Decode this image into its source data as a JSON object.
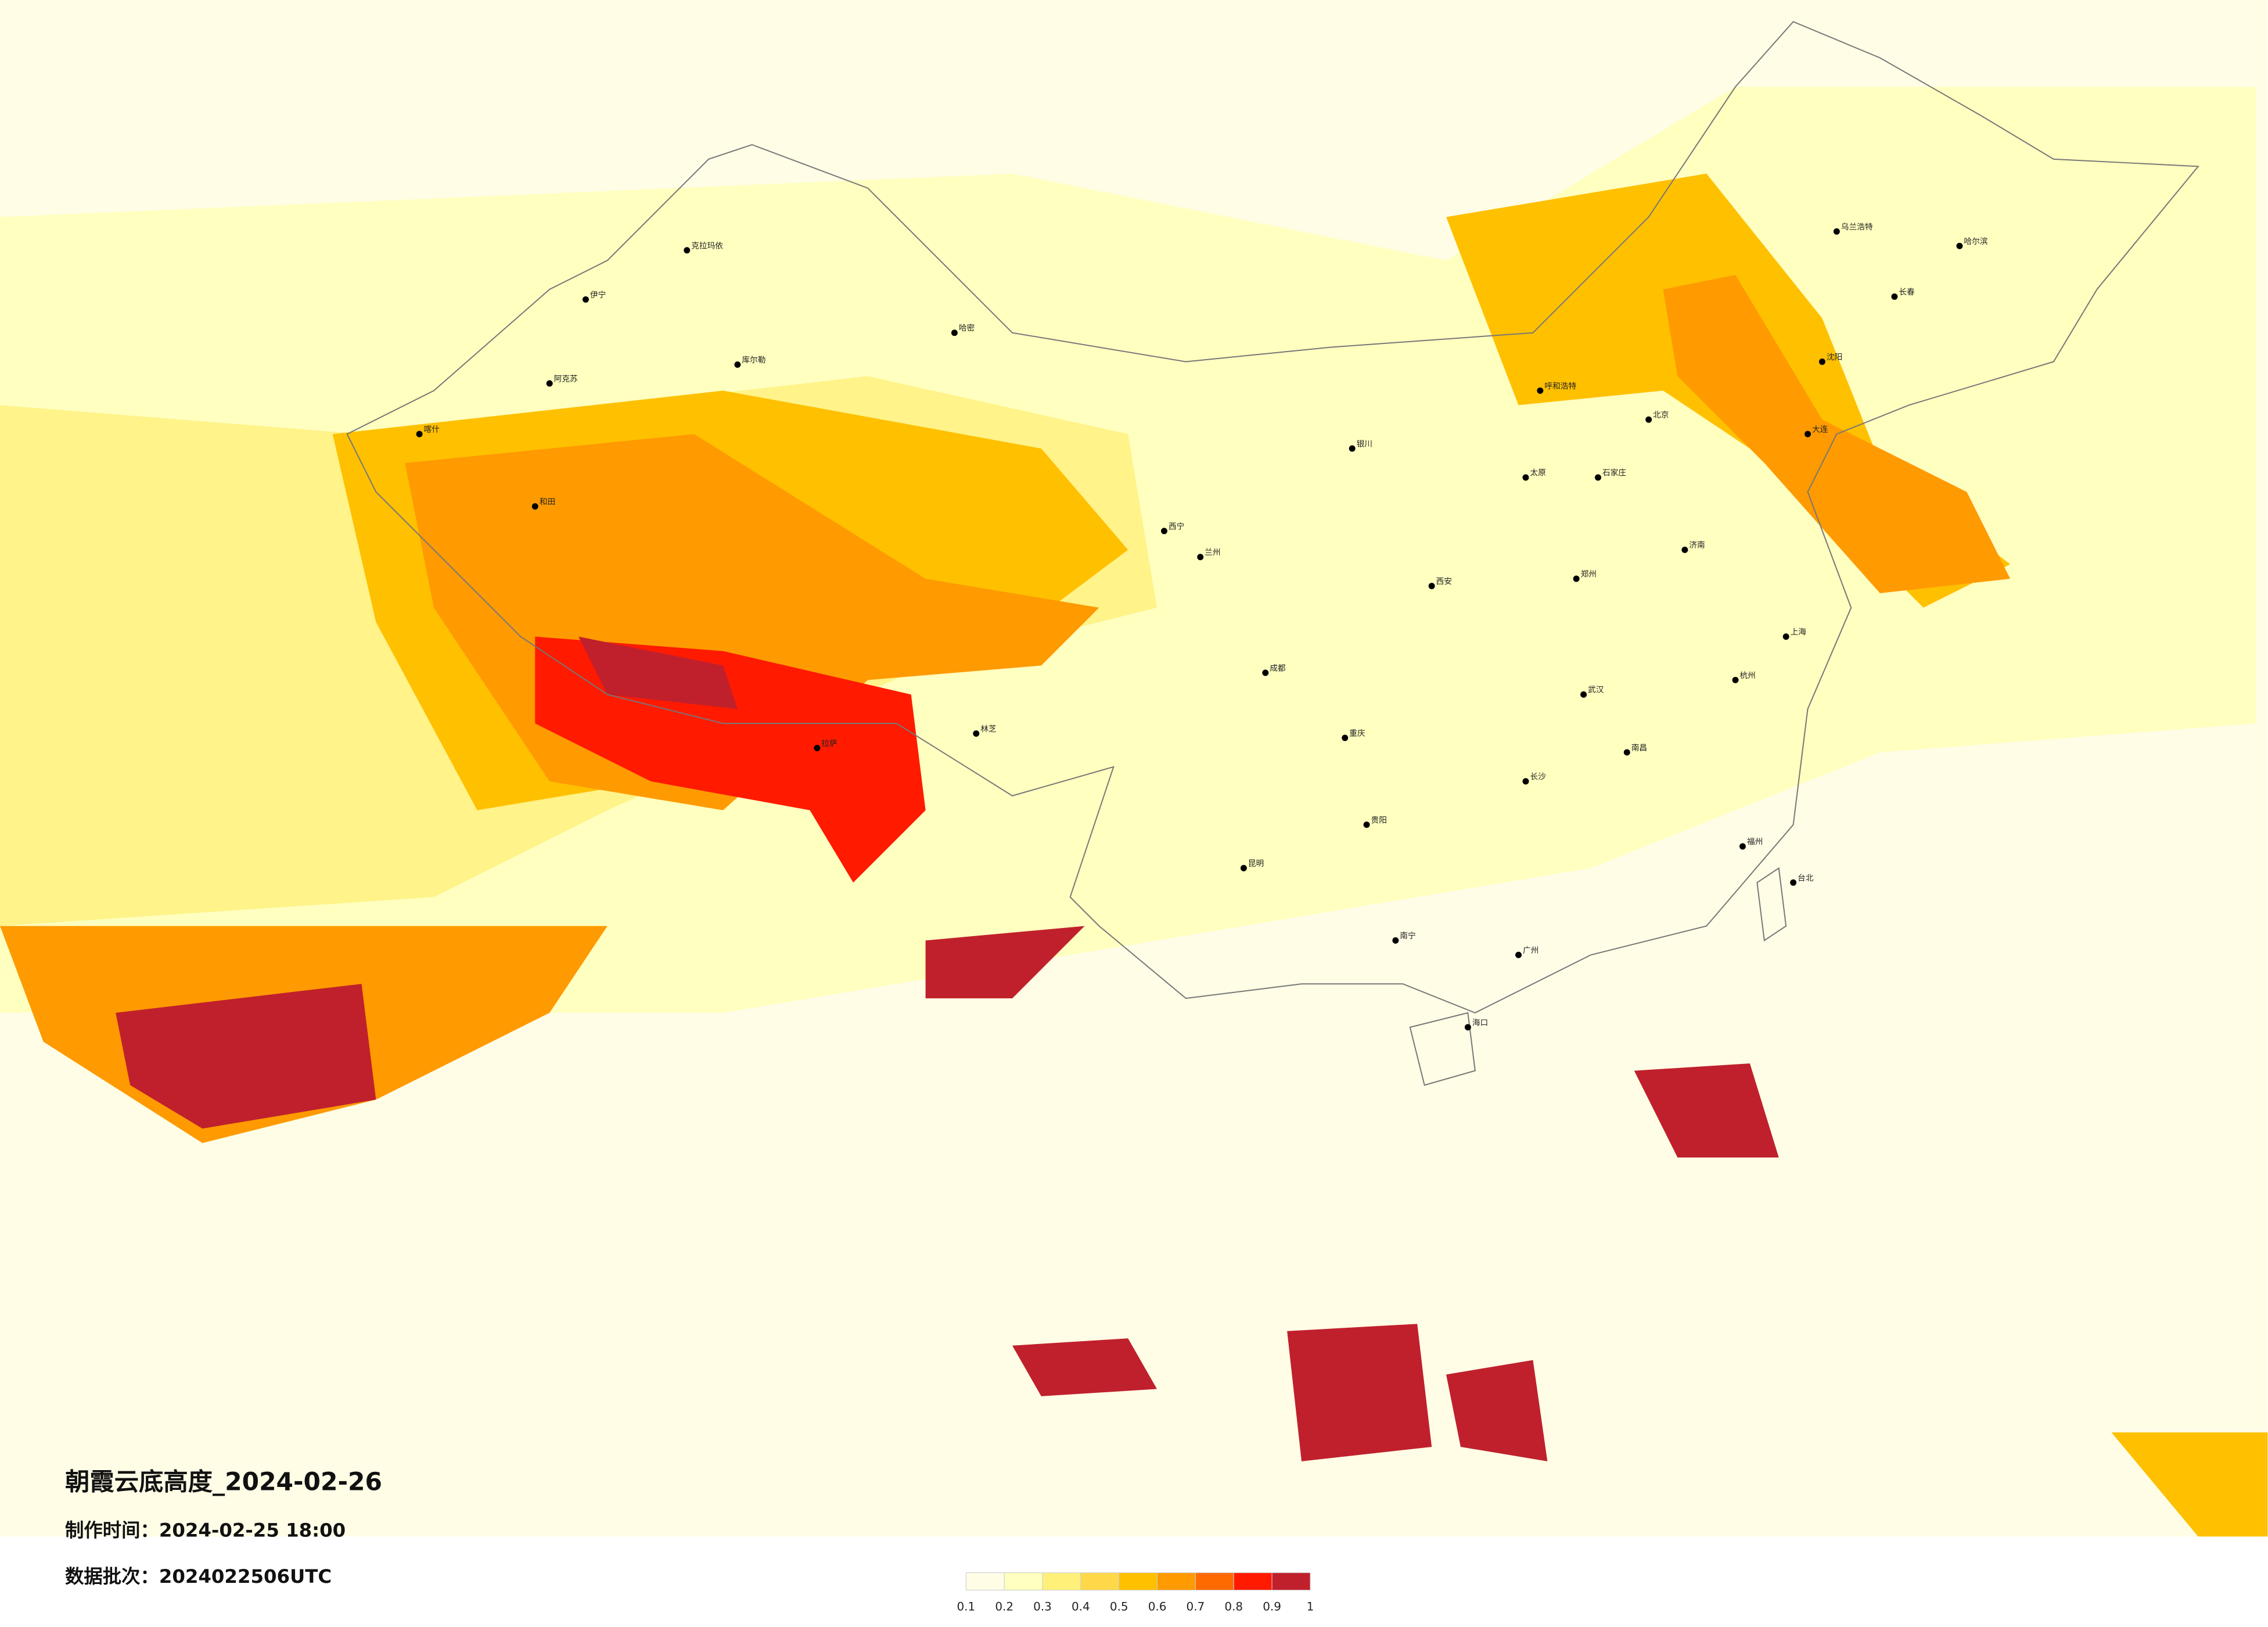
{
  "header": {
    "title": "朝霞云底高度_2024-02-26",
    "made_time": "制作时间：2024-02-25 18:00",
    "batch": "数据批次：2024022506UTC"
  },
  "legend": {
    "colors": [
      "#fffde6",
      "#ffffc0",
      "#fff07a",
      "#ffd84a",
      "#ffc000",
      "#ff9a00",
      "#ff6a00",
      "#ff1a00",
      "#c0202c"
    ],
    "ticks": [
      0.1,
      0.2,
      0.3,
      0.4,
      0.5,
      0.6,
      0.7,
      0.8,
      0.9,
      1
    ]
  },
  "cities": [
    "克拉玛依",
    "伊宁",
    "库尔勒",
    "阿克苏",
    "喀什",
    "和田",
    "哈密",
    "拉萨",
    "林芝",
    "西宁",
    "兰州",
    "银川",
    "呼和浩特",
    "北京",
    "太原",
    "石家庄",
    "济南",
    "郑州",
    "西安",
    "成都",
    "重庆",
    "贵阳",
    "昆明",
    "南宁",
    "广州",
    "长沙",
    "武汉",
    "南昌",
    "杭州",
    "上海",
    "福州",
    "海口",
    "哈尔滨",
    "长春",
    "沈阳",
    "大连",
    "乌兰浩特",
    "台北"
  ]
}
